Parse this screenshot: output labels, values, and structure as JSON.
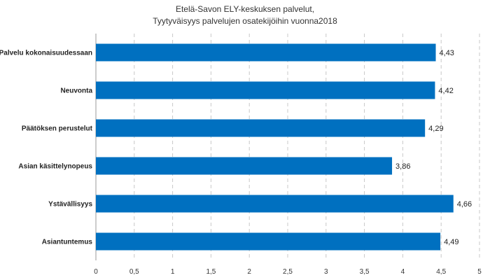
{
  "chart_data": {
    "type": "bar",
    "orientation": "horizontal",
    "title_lines": [
      "Etelä-Savon ELY-keskuksen palvelut,",
      "Tyytyväisyys palvelujen osatekijöihin vuonna2018"
    ],
    "categories": [
      "Palvelu kokonaisuudessaan",
      "Neuvonta",
      "Päätöksen perustelut",
      "Asian käsittelynopeus",
      "Ystävällisyys",
      "Asiantuntemus"
    ],
    "values": [
      4.43,
      4.42,
      4.29,
      3.86,
      4.66,
      4.49
    ],
    "data_labels": [
      "4,43",
      "4,42",
      "4,29",
      "3,86",
      "4,66",
      "4,49"
    ],
    "xlim": [
      0,
      5
    ],
    "x_ticks": [
      0,
      0.5,
      1,
      1.5,
      2,
      2.5,
      3,
      3.5,
      4,
      4.5,
      5
    ],
    "x_tick_labels": [
      "0",
      "0,5",
      "1",
      "1,5",
      "2",
      "2,5",
      "3",
      "3,5",
      "4",
      "4,5",
      "5"
    ],
    "grid": "vertical-dashed",
    "legend": "none",
    "bar_color": "#0070c0"
  }
}
